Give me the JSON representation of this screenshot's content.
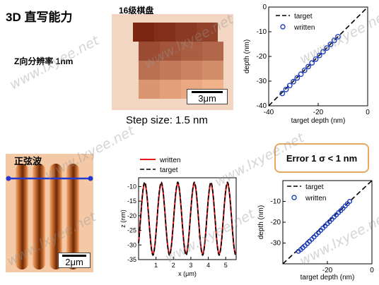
{
  "title": "3D 直写能力",
  "z_resolution": "Z向分辨率 1nm",
  "checkerboard": {
    "caption": "16级棋盘",
    "scale_bar": "3μm",
    "levels": 16
  },
  "step_size": "Step size: 1.5 nm",
  "sine": {
    "label": "正弦波",
    "scale_bar": "2μm"
  },
  "error_box": "Error 1 σ < 1 nm",
  "watermark": "www.lxyee.net",
  "colors": {
    "written": "#e41a1c",
    "target": "#000000",
    "circles": "#1f3fbf",
    "error_border": "#e8a860"
  },
  "chart_data": [
    {
      "type": "scatter",
      "id": "top-depth",
      "xlabel": "target depth (nm)",
      "ylabel": "depth (nm)",
      "xlim": [
        -40,
        0
      ],
      "ylim": [
        -40,
        0
      ],
      "xticks": [
        -40,
        -20,
        0
      ],
      "yticks": [
        -40,
        -30,
        -20,
        -10,
        0
      ],
      "legend": "top-left",
      "series": [
        {
          "name": "target",
          "style": "dashed-line",
          "x": [
            -40,
            0
          ],
          "y": [
            -40,
            0
          ]
        },
        {
          "name": "written",
          "style": "circles",
          "x": [
            -34.5,
            -33,
            -31.5,
            -30,
            -28.5,
            -27,
            -25.5,
            -24,
            -22.5,
            -21,
            -19.5,
            -18,
            -16.5,
            -15,
            -13.5,
            -12
          ],
          "y": [
            -35,
            -33.4,
            -31.8,
            -30.2,
            -28.7,
            -27.2,
            -25.6,
            -24.1,
            -22.6,
            -21.1,
            -19.6,
            -18.1,
            -16.6,
            -15.1,
            -13.5,
            -12
          ]
        }
      ]
    },
    {
      "type": "line",
      "id": "sine",
      "xlabel": "x (μm)",
      "ylabel": "z (nm)",
      "xlim": [
        0,
        5.6
      ],
      "ylim": [
        -35,
        -7
      ],
      "xticks": [
        1,
        2,
        3,
        4,
        5
      ],
      "yticks": [
        -10,
        -15,
        -20,
        -25,
        -30,
        -35
      ],
      "legend": "top-left",
      "series": [
        {
          "name": "written",
          "style": "solid",
          "amplitude": 12,
          "offset": -21,
          "period": 0.95,
          "phase": 0.35
        },
        {
          "name": "target",
          "style": "dashed",
          "amplitude": 12.5,
          "offset": -21,
          "period": 0.95,
          "phase": 0.35
        }
      ]
    },
    {
      "type": "scatter",
      "id": "bottom-depth",
      "xlabel": "target depth (nm)",
      "ylabel": "depth (nm)",
      "xlim": [
        -40,
        0
      ],
      "ylim": [
        -40,
        0
      ],
      "xticks": [
        -20,
        0
      ],
      "yticks": [
        -30,
        -20,
        -10
      ],
      "legend": "top-left",
      "series": [
        {
          "name": "target",
          "style": "dashed-line",
          "x": [
            -40,
            0
          ],
          "y": [
            -40,
            0
          ]
        },
        {
          "name": "written",
          "style": "circles",
          "x": [
            -33,
            -32,
            -31,
            -30,
            -29,
            -28,
            -27,
            -26,
            -25,
            -24,
            -23,
            -22,
            -21,
            -20,
            -19,
            -18,
            -17,
            -16,
            -15,
            -14,
            -13,
            -12,
            -11,
            -10
          ],
          "y": [
            -34,
            -33.2,
            -32.3,
            -31.3,
            -30.3,
            -29.2,
            -28.2,
            -27.1,
            -26,
            -25,
            -23.9,
            -22.8,
            -21.8,
            -20.7,
            -19.7,
            -18.6,
            -17.5,
            -16.5,
            -15.4,
            -14.4,
            -13.3,
            -12.2,
            -11.1,
            -10
          ]
        }
      ]
    }
  ]
}
